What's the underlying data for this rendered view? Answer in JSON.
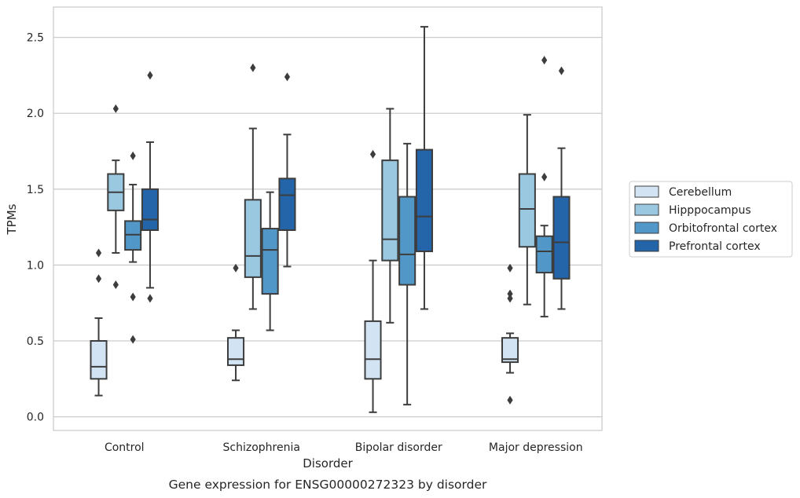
{
  "chart_data": {
    "type": "box",
    "title": "",
    "caption": "Gene expression for ENSG00000272323 by disorder",
    "xlabel": "Disorder",
    "ylabel": "TPMs",
    "ylim": [
      -0.09,
      2.7
    ],
    "yticks": [
      "0.0",
      "0.5",
      "1.0",
      "1.5",
      "2.0",
      "2.5"
    ],
    "grid": "horizontal",
    "legend_position": "outside-right",
    "categories": [
      "Control",
      "Schizophrenia",
      "Bipolar disorder",
      "Major depression"
    ],
    "series": [
      {
        "name": "Cerebellum",
        "color": "#d2e3f3",
        "boxes": [
          {
            "whislo": 0.14,
            "q1": 0.25,
            "med": 0.33,
            "q3": 0.5,
            "whishi": 0.65,
            "fliers": [
              1.08,
              0.91
            ]
          },
          {
            "whislo": 0.24,
            "q1": 0.34,
            "med": 0.38,
            "q3": 0.52,
            "whishi": 0.57,
            "fliers": [
              0.98
            ]
          },
          {
            "whislo": 0.03,
            "q1": 0.25,
            "med": 0.38,
            "q3": 0.63,
            "whishi": 1.03,
            "fliers": [
              1.73
            ]
          },
          {
            "whislo": 0.29,
            "q1": 0.36,
            "med": 0.38,
            "q3": 0.52,
            "whishi": 0.55,
            "fliers": [
              0.98,
              0.81,
              0.78,
              0.11
            ]
          }
        ]
      },
      {
        "name": "Hipppocampus",
        "color": "#9ac8e0",
        "boxes": [
          {
            "whislo": 1.08,
            "q1": 1.36,
            "med": 1.48,
            "q3": 1.6,
            "whishi": 1.69,
            "fliers": [
              2.03,
              0.87
            ]
          },
          {
            "whislo": 0.71,
            "q1": 0.92,
            "med": 1.06,
            "q3": 1.43,
            "whishi": 1.9,
            "fliers": [
              2.3
            ]
          },
          {
            "whislo": 0.62,
            "q1": 1.03,
            "med": 1.17,
            "q3": 1.69,
            "whishi": 2.03,
            "fliers": []
          },
          {
            "whislo": 0.74,
            "q1": 1.12,
            "med": 1.37,
            "q3": 1.6,
            "whishi": 1.99,
            "fliers": []
          }
        ]
      },
      {
        "name": "Orbitofrontal cortex",
        "color": "#5198c8",
        "boxes": [
          {
            "whislo": 1.02,
            "q1": 1.1,
            "med": 1.2,
            "q3": 1.29,
            "whishi": 1.53,
            "fliers": [
              1.72,
              0.79,
              0.51
            ]
          },
          {
            "whislo": 0.57,
            "q1": 0.81,
            "med": 1.1,
            "q3": 1.24,
            "whishi": 1.48,
            "fliers": []
          },
          {
            "whislo": 0.08,
            "q1": 0.87,
            "med": 1.07,
            "q3": 1.45,
            "whishi": 1.8,
            "fliers": []
          },
          {
            "whislo": 0.66,
            "q1": 0.95,
            "med": 1.09,
            "q3": 1.19,
            "whishi": 1.26,
            "fliers": [
              2.35,
              1.58
            ]
          }
        ]
      },
      {
        "name": "Prefrontal cortex",
        "color": "#2464a8",
        "boxes": [
          {
            "whislo": 0.85,
            "q1": 1.23,
            "med": 1.3,
            "q3": 1.5,
            "whishi": 1.81,
            "fliers": [
              2.25,
              0.78
            ]
          },
          {
            "whislo": 0.99,
            "q1": 1.23,
            "med": 1.46,
            "q3": 1.57,
            "whishi": 1.86,
            "fliers": [
              2.24
            ]
          },
          {
            "whislo": 0.71,
            "q1": 1.09,
            "med": 1.32,
            "q3": 1.76,
            "whishi": 2.57,
            "fliers": []
          },
          {
            "whislo": 0.71,
            "q1": 0.91,
            "med": 1.15,
            "q3": 1.45,
            "whishi": 1.77,
            "fliers": [
              2.28
            ]
          }
        ]
      }
    ]
  }
}
